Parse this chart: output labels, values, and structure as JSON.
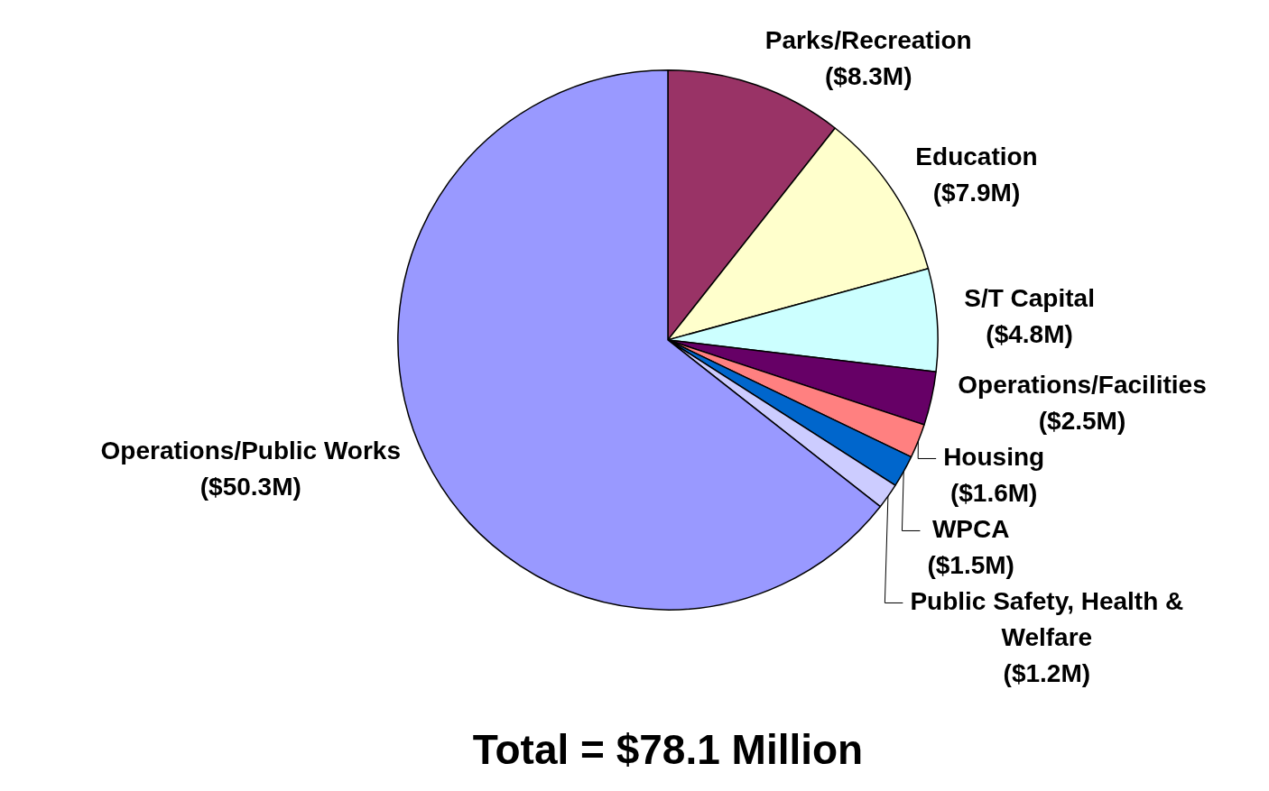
{
  "chart_data": {
    "type": "pie",
    "title": "Total = $78.1 Million",
    "categories": [
      "Parks/Recreation",
      "Education",
      "S/T Capital",
      "Operations/Facilities",
      "Housing",
      "WPCA",
      "Public Safety, Health & Welfare",
      "Operations/Public Works"
    ],
    "values": [
      8.3,
      7.9,
      4.8,
      2.5,
      1.6,
      1.5,
      1.2,
      50.3
    ],
    "colors": [
      "#993366",
      "#ffffcc",
      "#ccffff",
      "#660066",
      "#ff8080",
      "#0066cc",
      "#ccccff",
      "#9999ff"
    ],
    "value_labels": [
      "($8.3M)",
      "($7.9M)",
      "($4.8M)",
      "($2.5M)",
      "($1.6M)",
      "($1.5M)",
      "($1.2M)",
      "($50.3M)"
    ],
    "legend": false
  }
}
